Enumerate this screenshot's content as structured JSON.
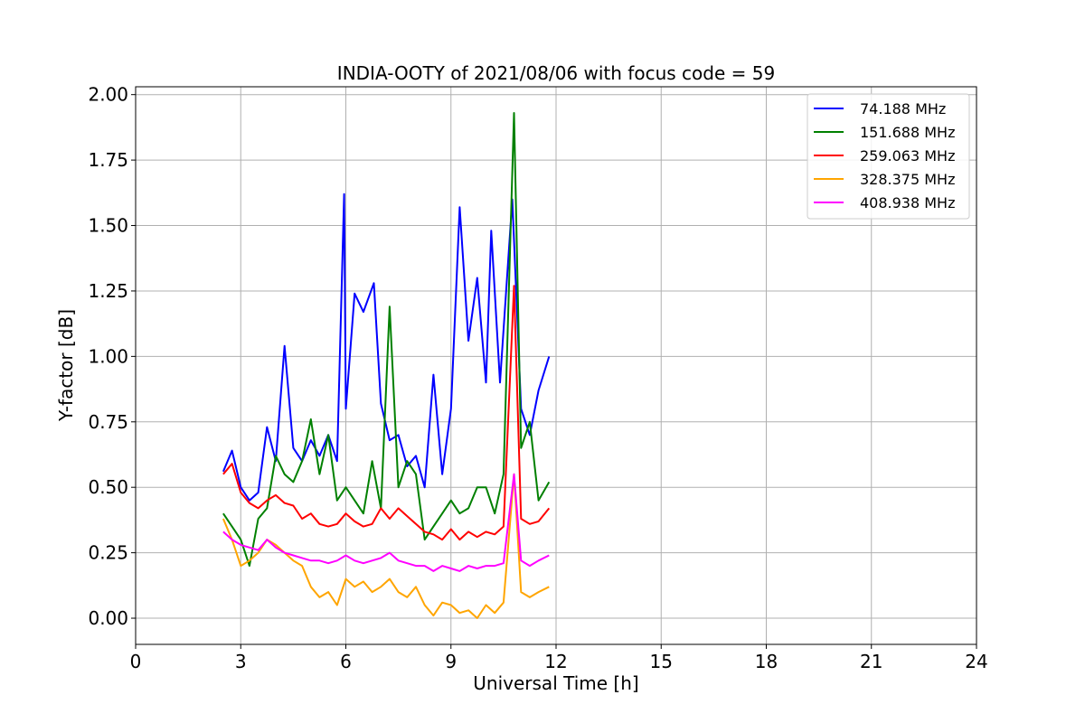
{
  "chart_data": {
    "type": "line",
    "title": "INDIA-OOTY of 2021/08/06 with focus code = 59",
    "xlabel": "Universal Time [h]",
    "ylabel": "Y-factor [dB]",
    "xlim": [
      0,
      24
    ],
    "ylim": [
      -0.1,
      2.03
    ],
    "xticks": [
      "0",
      "3",
      "6",
      "9",
      "12",
      "15",
      "18",
      "21",
      "24"
    ],
    "yticks": [
      "0.00",
      "0.25",
      "0.50",
      "0.75",
      "1.00",
      "1.25",
      "1.50",
      "1.75",
      "2.00"
    ],
    "grid": true,
    "legend_position": "top-right",
    "series": [
      {
        "name": "74.188 MHz",
        "color": "#0000ff",
        "x": [
          2.5,
          2.75,
          3.0,
          3.25,
          3.5,
          3.75,
          4.0,
          4.25,
          4.5,
          4.75,
          5.0,
          5.25,
          5.5,
          5.75,
          5.95,
          6.0,
          6.25,
          6.5,
          6.8,
          7.0,
          7.25,
          7.5,
          7.75,
          8.0,
          8.25,
          8.5,
          8.75,
          9.0,
          9.25,
          9.5,
          9.75,
          10.0,
          10.15,
          10.4,
          10.75,
          11.0,
          11.25,
          11.5,
          11.8
        ],
        "y": [
          0.56,
          0.64,
          0.5,
          0.45,
          0.48,
          0.73,
          0.6,
          1.04,
          0.65,
          0.6,
          0.68,
          0.62,
          0.7,
          0.6,
          1.62,
          0.8,
          1.24,
          1.17,
          1.28,
          0.82,
          0.68,
          0.7,
          0.58,
          0.62,
          0.5,
          0.93,
          0.55,
          0.8,
          1.57,
          1.06,
          1.3,
          0.9,
          1.48,
          0.9,
          1.6,
          0.8,
          0.7,
          0.87,
          1.0
        ]
      },
      {
        "name": "151.688 MHz",
        "color": "#008000",
        "x": [
          2.5,
          2.75,
          3.0,
          3.25,
          3.5,
          3.75,
          4.0,
          4.25,
          4.5,
          4.75,
          5.0,
          5.25,
          5.5,
          5.75,
          6.0,
          6.25,
          6.5,
          6.75,
          7.0,
          7.25,
          7.5,
          7.75,
          8.0,
          8.25,
          8.5,
          8.75,
          9.0,
          9.25,
          9.5,
          9.75,
          10.0,
          10.25,
          10.5,
          10.8,
          11.0,
          11.25,
          11.5,
          11.8
        ],
        "y": [
          0.4,
          0.35,
          0.3,
          0.2,
          0.38,
          0.42,
          0.62,
          0.55,
          0.52,
          0.6,
          0.76,
          0.55,
          0.7,
          0.45,
          0.5,
          0.45,
          0.4,
          0.6,
          0.42,
          1.19,
          0.5,
          0.6,
          0.55,
          0.3,
          0.35,
          0.4,
          0.45,
          0.4,
          0.42,
          0.5,
          0.5,
          0.4,
          0.55,
          1.93,
          0.65,
          0.75,
          0.45,
          0.52
        ]
      },
      {
        "name": "259.063 MHz",
        "color": "#ff0000",
        "x": [
          2.5,
          2.75,
          3.0,
          3.25,
          3.5,
          3.75,
          4.0,
          4.25,
          4.5,
          4.75,
          5.0,
          5.25,
          5.5,
          5.75,
          6.0,
          6.25,
          6.5,
          6.75,
          7.0,
          7.25,
          7.5,
          7.75,
          8.0,
          8.25,
          8.5,
          8.75,
          9.0,
          9.25,
          9.5,
          9.75,
          10.0,
          10.25,
          10.5,
          10.8,
          11.0,
          11.25,
          11.5,
          11.8
        ],
        "y": [
          0.55,
          0.59,
          0.48,
          0.44,
          0.42,
          0.45,
          0.47,
          0.44,
          0.43,
          0.38,
          0.4,
          0.36,
          0.35,
          0.36,
          0.4,
          0.37,
          0.35,
          0.36,
          0.42,
          0.38,
          0.42,
          0.39,
          0.36,
          0.33,
          0.32,
          0.3,
          0.34,
          0.3,
          0.33,
          0.31,
          0.33,
          0.32,
          0.35,
          1.27,
          0.38,
          0.36,
          0.37,
          0.42
        ]
      },
      {
        "name": "328.375 MHz",
        "color": "#ffa500",
        "x": [
          2.5,
          2.75,
          3.0,
          3.25,
          3.5,
          3.75,
          4.0,
          4.25,
          4.5,
          4.75,
          5.0,
          5.25,
          5.5,
          5.75,
          6.0,
          6.25,
          6.5,
          6.75,
          7.0,
          7.25,
          7.5,
          7.75,
          8.0,
          8.25,
          8.5,
          8.75,
          9.0,
          9.25,
          9.5,
          9.75,
          10.0,
          10.25,
          10.5,
          10.8,
          11.0,
          11.25,
          11.5,
          11.8
        ],
        "y": [
          0.38,
          0.3,
          0.2,
          0.22,
          0.25,
          0.3,
          0.28,
          0.25,
          0.22,
          0.2,
          0.12,
          0.08,
          0.1,
          0.05,
          0.15,
          0.12,
          0.14,
          0.1,
          0.12,
          0.15,
          0.1,
          0.08,
          0.12,
          0.05,
          0.01,
          0.06,
          0.05,
          0.02,
          0.03,
          0.0,
          0.05,
          0.02,
          0.06,
          0.55,
          0.1,
          0.08,
          0.1,
          0.12
        ]
      },
      {
        "name": "408.938 MHz",
        "color": "#ff00ff",
        "x": [
          2.5,
          2.75,
          3.0,
          3.25,
          3.5,
          3.75,
          4.0,
          4.25,
          4.5,
          4.75,
          5.0,
          5.25,
          5.5,
          5.75,
          6.0,
          6.25,
          6.5,
          6.75,
          7.0,
          7.25,
          7.5,
          7.75,
          8.0,
          8.25,
          8.5,
          8.75,
          9.0,
          9.25,
          9.5,
          9.75,
          10.0,
          10.25,
          10.5,
          10.8,
          11.0,
          11.25,
          11.5,
          11.8
        ],
        "y": [
          0.33,
          0.3,
          0.28,
          0.27,
          0.26,
          0.3,
          0.27,
          0.25,
          0.24,
          0.23,
          0.22,
          0.22,
          0.21,
          0.22,
          0.24,
          0.22,
          0.21,
          0.22,
          0.23,
          0.25,
          0.22,
          0.21,
          0.2,
          0.2,
          0.18,
          0.2,
          0.19,
          0.18,
          0.2,
          0.19,
          0.2,
          0.2,
          0.21,
          0.55,
          0.22,
          0.2,
          0.22,
          0.24
        ]
      }
    ]
  }
}
